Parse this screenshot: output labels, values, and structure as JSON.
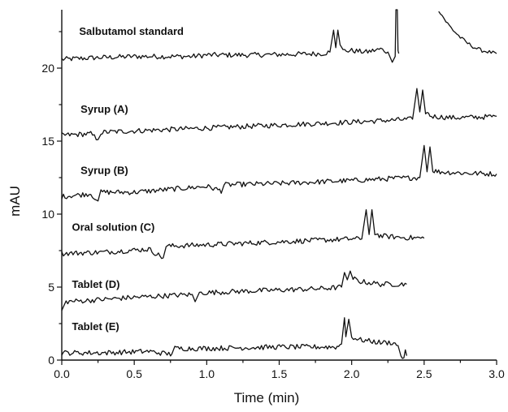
{
  "chart_data": {
    "type": "line",
    "xlabel": "Time (min)",
    "ylabel": "mAU",
    "xlim": [
      0,
      3
    ],
    "ylim": [
      0,
      24
    ],
    "xticks": [
      "0.0",
      "0.5",
      "1.0",
      "1.5",
      "2.0",
      "2.5",
      "3.0"
    ],
    "yticks": [
      "0",
      "5",
      "10",
      "15",
      "20"
    ],
    "grid": false,
    "series": [
      {
        "name": "Salbutamol standard",
        "points": [
          [
            0.0,
            20.6
          ],
          [
            0.2,
            20.7
          ],
          [
            0.5,
            20.8
          ],
          [
            0.75,
            20.8
          ],
          [
            0.9,
            20.8
          ],
          [
            1.0,
            20.9
          ],
          [
            1.3,
            20.9
          ],
          [
            1.6,
            20.95
          ],
          [
            1.8,
            21.0
          ],
          [
            1.85,
            21.1
          ],
          [
            1.875,
            22.6
          ],
          [
            1.89,
            21.4
          ],
          [
            1.905,
            22.6
          ],
          [
            1.92,
            21.6
          ],
          [
            1.94,
            21.2
          ],
          [
            2.0,
            21.2
          ],
          [
            2.1,
            21.1
          ],
          [
            2.2,
            21.3
          ],
          [
            2.25,
            21.1
          ],
          [
            2.28,
            20.4
          ],
          [
            2.3,
            20.8
          ],
          [
            2.305,
            24.0
          ],
          [
            2.315,
            24.0
          ],
          [
            2.32,
            21.2
          ],
          [
            2.325,
            21.0
          ]
        ],
        "segment2": [
          [
            2.6,
            24.0
          ],
          [
            2.65,
            23.2
          ],
          [
            2.7,
            22.6
          ],
          [
            2.75,
            22.1
          ],
          [
            2.8,
            21.7
          ],
          [
            2.85,
            21.4
          ],
          [
            2.9,
            21.2
          ],
          [
            2.95,
            21.1
          ],
          [
            3.0,
            21.0
          ]
        ]
      },
      {
        "name": "Syrup (A)",
        "points": [
          [
            0.0,
            15.4
          ],
          [
            0.2,
            15.5
          ],
          [
            0.25,
            15.1
          ],
          [
            0.27,
            15.6
          ],
          [
            0.5,
            15.7
          ],
          [
            1.0,
            15.9
          ],
          [
            1.5,
            16.1
          ],
          [
            2.0,
            16.3
          ],
          [
            2.3,
            16.45
          ],
          [
            2.42,
            16.5
          ],
          [
            2.45,
            18.6
          ],
          [
            2.47,
            17.0
          ],
          [
            2.49,
            18.5
          ],
          [
            2.51,
            17.0
          ],
          [
            2.55,
            16.7
          ],
          [
            2.7,
            16.6
          ],
          [
            2.9,
            16.65
          ],
          [
            3.0,
            16.7
          ]
        ]
      },
      {
        "name": "Syrup (B)",
        "points": [
          [
            0.0,
            11.2
          ],
          [
            0.2,
            11.4
          ],
          [
            0.25,
            10.9
          ],
          [
            0.27,
            11.5
          ],
          [
            0.5,
            11.5
          ],
          [
            1.0,
            11.9
          ],
          [
            1.1,
            11.6
          ],
          [
            1.12,
            12.0
          ],
          [
            1.5,
            12.1
          ],
          [
            2.0,
            12.3
          ],
          [
            2.3,
            12.45
          ],
          [
            2.47,
            12.5
          ],
          [
            2.5,
            14.7
          ],
          [
            2.52,
            12.9
          ],
          [
            2.54,
            14.6
          ],
          [
            2.56,
            13.0
          ],
          [
            2.6,
            12.9
          ],
          [
            2.8,
            12.8
          ],
          [
            3.0,
            12.75
          ]
        ]
      },
      {
        "name": "Oral solution (C)",
        "points": [
          [
            0.0,
            7.3
          ],
          [
            0.3,
            7.4
          ],
          [
            0.6,
            7.6
          ],
          [
            0.7,
            7.0
          ],
          [
            0.72,
            7.8
          ],
          [
            1.0,
            7.9
          ],
          [
            1.5,
            8.1
          ],
          [
            2.0,
            8.3
          ],
          [
            2.07,
            8.3
          ],
          [
            2.1,
            10.3
          ],
          [
            2.12,
            8.6
          ],
          [
            2.14,
            10.3
          ],
          [
            2.16,
            8.7
          ],
          [
            2.2,
            8.5
          ],
          [
            2.35,
            8.4
          ],
          [
            2.5,
            8.35
          ]
        ]
      },
      {
        "name": "Tablet (D)",
        "points": [
          [
            0.0,
            3.4
          ],
          [
            0.03,
            4.0
          ],
          [
            0.2,
            4.1
          ],
          [
            0.5,
            4.3
          ],
          [
            0.9,
            4.5
          ],
          [
            0.92,
            4.0
          ],
          [
            0.95,
            4.6
          ],
          [
            1.2,
            4.7
          ],
          [
            1.5,
            4.8
          ],
          [
            1.8,
            4.9
          ],
          [
            1.93,
            5.0
          ],
          [
            1.95,
            6.0
          ],
          [
            1.97,
            5.5
          ],
          [
            1.99,
            6.1
          ],
          [
            2.01,
            5.6
          ],
          [
            2.05,
            5.4
          ],
          [
            2.2,
            5.2
          ],
          [
            2.38,
            5.2
          ]
        ]
      },
      {
        "name": "Tablet (E)",
        "points": [
          [
            0.0,
            0.5
          ],
          [
            0.3,
            0.5
          ],
          [
            0.6,
            0.6
          ],
          [
            0.75,
            0.4
          ],
          [
            0.78,
            0.8
          ],
          [
            1.0,
            0.8
          ],
          [
            1.5,
            0.9
          ],
          [
            1.9,
            0.9
          ],
          [
            1.93,
            1.1
          ],
          [
            1.95,
            2.9
          ],
          [
            1.96,
            1.6
          ],
          [
            1.98,
            2.8
          ],
          [
            2.0,
            1.6
          ],
          [
            2.05,
            1.4
          ],
          [
            2.2,
            1.2
          ],
          [
            2.28,
            1.2
          ],
          [
            2.32,
            1.0
          ],
          [
            2.34,
            0.3
          ],
          [
            2.36,
            0.15
          ],
          [
            2.37,
            0.7
          ],
          [
            2.38,
            0.3
          ]
        ]
      }
    ]
  }
}
